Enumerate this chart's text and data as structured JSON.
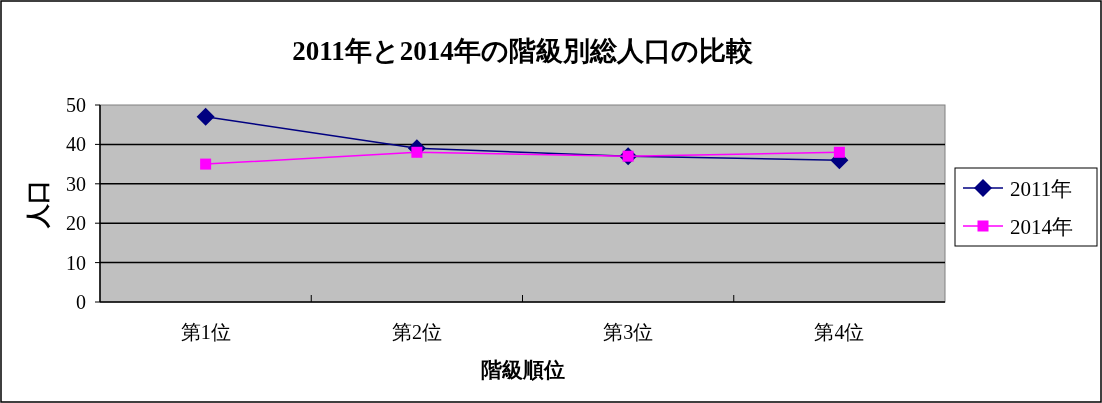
{
  "chart_data": {
    "type": "line",
    "title": "2011年と2014年の階級別総人口の比較",
    "xlabel": "階級順位",
    "ylabel": "人口",
    "categories": [
      "第1位",
      "第2位",
      "第3位",
      "第4位"
    ],
    "series": [
      {
        "name": "2011年",
        "color": "#000080",
        "marker": "diamond",
        "values": [
          47,
          39,
          37,
          36
        ]
      },
      {
        "name": "2014年",
        "color": "#ff00ff",
        "marker": "square",
        "values": [
          35,
          38,
          37,
          38
        ]
      }
    ],
    "ylim": [
      0,
      50
    ],
    "yticks": [
      0,
      10,
      20,
      30,
      40,
      50
    ],
    "grid": "y",
    "legend": "right"
  }
}
